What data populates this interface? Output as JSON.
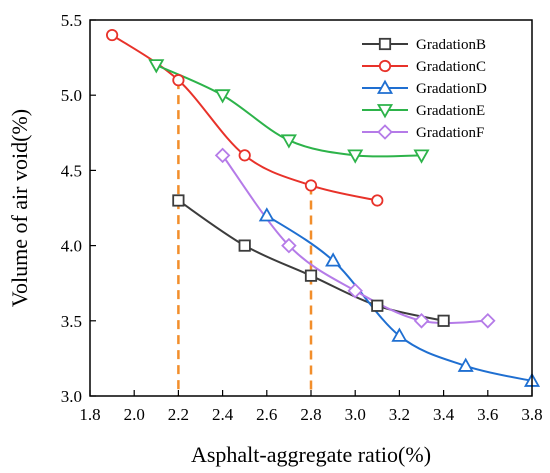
{
  "chart_data": {
    "type": "line",
    "title": "",
    "xlabel": "Asphalt-aggregate ratio(%)",
    "ylabel": "Volume of air void(%)",
    "xlim": [
      1.8,
      3.8
    ],
    "ylim": [
      3.0,
      5.5
    ],
    "xticks": [
      "1.8",
      "2.0",
      "2.2",
      "2.4",
      "2.6",
      "2.8",
      "3.0",
      "3.2",
      "3.4",
      "3.6",
      "3.8"
    ],
    "yticks": [
      "3.0",
      "3.5",
      "4.0",
      "4.5",
      "5.0",
      "5.5"
    ],
    "grid": false,
    "legend_position": "top-right",
    "reference_lines": [
      {
        "x": 2.2,
        "y": 5.1,
        "color": "#f28e2b"
      },
      {
        "x": 2.8,
        "y": 4.4,
        "color": "#f28e2b"
      }
    ],
    "series": [
      {
        "name": "GradationB",
        "color": "#3c3c3c",
        "marker": "square",
        "x": [
          2.2,
          2.5,
          2.8,
          3.1,
          3.4
        ],
        "y": [
          4.3,
          4.0,
          3.8,
          3.6,
          3.5
        ]
      },
      {
        "name": "GradationC",
        "color": "#e8322a",
        "marker": "circle",
        "x": [
          1.9,
          2.2,
          2.5,
          2.8,
          3.1
        ],
        "y": [
          5.4,
          5.1,
          4.6,
          4.4,
          4.3
        ]
      },
      {
        "name": "GradationD",
        "color": "#1f6fd1",
        "marker": "triangle-up",
        "x": [
          2.6,
          2.9,
          3.2,
          3.5,
          3.8
        ],
        "y": [
          4.2,
          3.9,
          3.4,
          3.2,
          3.1
        ]
      },
      {
        "name": "GradationE",
        "color": "#2db34a",
        "marker": "triangle-down",
        "x": [
          2.1,
          2.4,
          2.7,
          3.0,
          3.3
        ],
        "y": [
          5.2,
          5.0,
          4.7,
          4.6,
          4.6
        ]
      },
      {
        "name": "GradationF",
        "color": "#b57be8",
        "marker": "diamond",
        "x": [
          2.4,
          2.7,
          3.0,
          3.3,
          3.6
        ],
        "y": [
          4.6,
          4.0,
          3.7,
          3.5,
          3.5
        ]
      }
    ]
  }
}
